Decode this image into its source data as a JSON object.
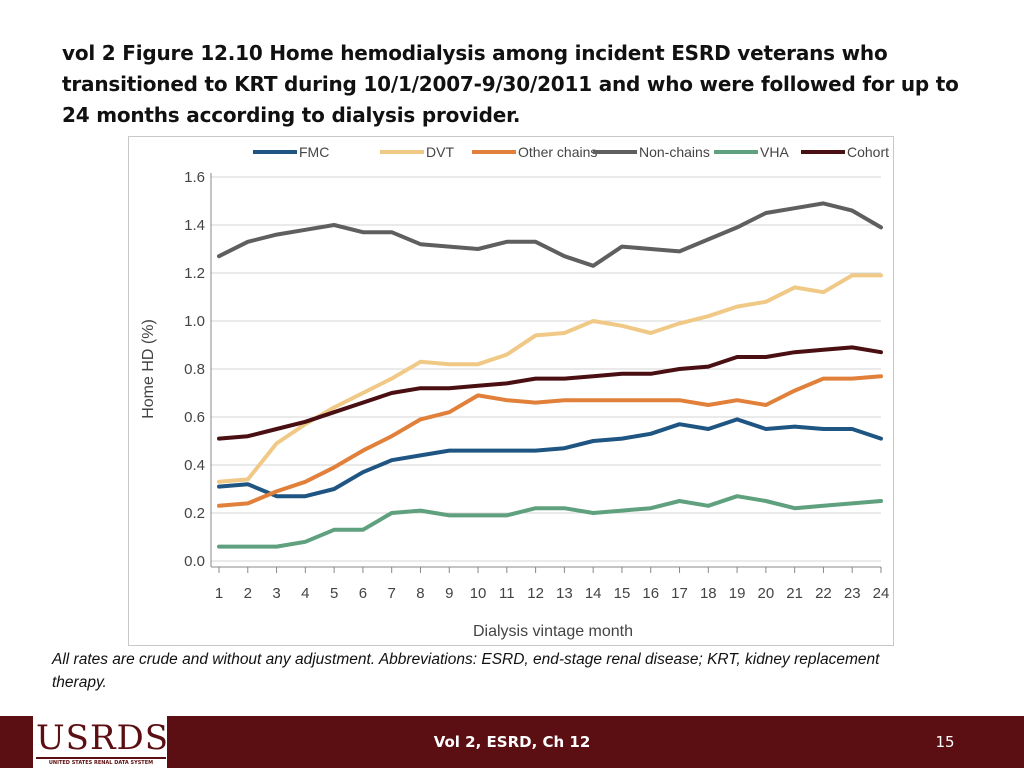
{
  "slide": {
    "title": "vol 2 Figure 12.10  Home hemodialysis among incident ESRD veterans who transitioned to KRT during 10/1/2007-9/30/2011 and who were followed for up to 24 months according to dialysis provider.",
    "footnote": "All rates are crude and without any adjustment. Abbreviations: ESRD, end-stage renal disease; KRT, kidney replacement therapy.",
    "footer_center": "Vol 2, ESRD, Ch 12",
    "page_number": "15"
  },
  "logo": {
    "text": "USRDS",
    "subtext": "UNITED STATES RENAL DATA SYSTEM"
  },
  "chart_data": {
    "type": "line",
    "title": "",
    "xlabel": "Dialysis vintage month",
    "ylabel": "Home HD (%)",
    "x": [
      1,
      2,
      3,
      4,
      5,
      6,
      7,
      8,
      9,
      10,
      11,
      12,
      13,
      14,
      15,
      16,
      17,
      18,
      19,
      20,
      21,
      22,
      23,
      24
    ],
    "ylim": [
      0,
      1.6
    ],
    "yticks": [
      "0.0",
      "0.2",
      "0.4",
      "0.6",
      "0.8",
      "1.0",
      "1.2",
      "1.4",
      "1.6"
    ],
    "grid": true,
    "legend_position": "top",
    "series": [
      {
        "name": "FMC",
        "color": "#1f5582",
        "values": [
          0.31,
          0.32,
          0.27,
          0.27,
          0.3,
          0.37,
          0.42,
          0.44,
          0.46,
          0.46,
          0.46,
          0.46,
          0.47,
          0.5,
          0.51,
          0.53,
          0.57,
          0.55,
          0.59,
          0.55,
          0.56,
          0.55,
          0.55,
          0.51
        ]
      },
      {
        "name": "DVT",
        "color": "#f0c987",
        "values": [
          0.33,
          0.34,
          0.49,
          0.57,
          0.64,
          0.7,
          0.76,
          0.83,
          0.82,
          0.82,
          0.86,
          0.94,
          0.95,
          1.0,
          0.98,
          0.95,
          0.99,
          1.02,
          1.06,
          1.08,
          1.14,
          1.12,
          1.19,
          1.19
        ]
      },
      {
        "name": "Other chains",
        "color": "#e0803a",
        "values": [
          0.23,
          0.24,
          0.29,
          0.33,
          0.39,
          0.46,
          0.52,
          0.59,
          0.62,
          0.69,
          0.67,
          0.66,
          0.67,
          0.67,
          0.67,
          0.67,
          0.67,
          0.65,
          0.67,
          0.65,
          0.71,
          0.76,
          0.76,
          0.77
        ]
      },
      {
        "name": "Non-chains",
        "color": "#5f5f5f",
        "values": [
          1.27,
          1.33,
          1.36,
          1.38,
          1.4,
          1.37,
          1.37,
          1.32,
          1.31,
          1.3,
          1.33,
          1.33,
          1.27,
          1.23,
          1.31,
          1.3,
          1.29,
          1.34,
          1.39,
          1.45,
          1.47,
          1.49,
          1.46,
          1.39
        ]
      },
      {
        "name": "VHA",
        "color": "#5fa07e",
        "values": [
          0.06,
          0.06,
          0.06,
          0.08,
          0.13,
          0.13,
          0.2,
          0.21,
          0.19,
          0.19,
          0.19,
          0.22,
          0.22,
          0.2,
          0.21,
          0.22,
          0.25,
          0.23,
          0.27,
          0.25,
          0.22,
          0.23,
          0.24,
          0.25
        ]
      },
      {
        "name": "Cohort",
        "color": "#4a0f12",
        "values": [
          0.51,
          0.52,
          0.55,
          0.58,
          0.62,
          0.66,
          0.7,
          0.72,
          0.72,
          0.73,
          0.74,
          0.76,
          0.76,
          0.77,
          0.78,
          0.78,
          0.8,
          0.81,
          0.85,
          0.85,
          0.87,
          0.88,
          0.89,
          0.87
        ]
      }
    ]
  }
}
